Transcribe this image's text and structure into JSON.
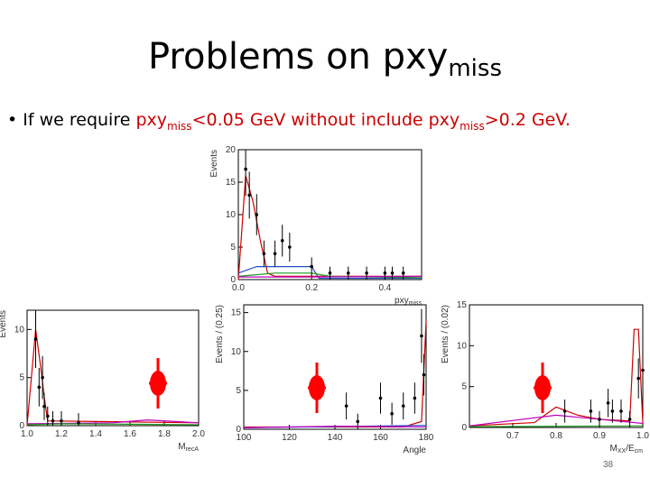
{
  "slide": {
    "title_main": "Problems on pxy",
    "title_sub": "miss",
    "bullet_mark": "•",
    "bullet_text_1": "If we require ",
    "bullet_red_1a": "pxy",
    "bullet_red_1b": "miss",
    "bullet_red_1c": "<0.05 GeV without include pxy",
    "bullet_red_2b": "miss",
    "bullet_red_2c": ">0.2 GeV.",
    "page_number": "38",
    "marker_color": "#ff0000"
  },
  "chart_data": [
    {
      "type": "line",
      "ylabel": "Events",
      "xlabel": "pxy",
      "xlabel_sub": "miss",
      "xlim": [
        0,
        0.5
      ],
      "ylim": [
        0,
        20
      ],
      "xticks": [
        "0.0",
        "0.2",
        "0.4"
      ],
      "yticks": [
        "0",
        "5",
        "10",
        "15",
        "20"
      ],
      "points": [
        [
          0.02,
          17
        ],
        [
          0.03,
          13
        ],
        [
          0.05,
          10
        ],
        [
          0.07,
          4
        ],
        [
          0.1,
          4
        ],
        [
          0.12,
          6
        ],
        [
          0.14,
          5
        ],
        [
          0.2,
          2
        ],
        [
          0.25,
          1
        ],
        [
          0.3,
          1
        ],
        [
          0.35,
          1
        ],
        [
          0.4,
          1
        ],
        [
          0.42,
          1
        ],
        [
          0.45,
          1
        ]
      ],
      "series": [
        {
          "color": "#d00000",
          "values": [
            [
              0,
              0
            ],
            [
              0.02,
              16
            ],
            [
              0.04,
              12
            ],
            [
              0.06,
              6
            ],
            [
              0.08,
              1
            ],
            [
              0.1,
              0.5
            ],
            [
              0.5,
              0.5
            ]
          ]
        },
        {
          "color": "#1f4ec8",
          "values": [
            [
              0,
              1
            ],
            [
              0.05,
              2
            ],
            [
              0.1,
              2
            ],
            [
              0.15,
              2
            ],
            [
              0.2,
              2
            ],
            [
              0.22,
              0.2
            ],
            [
              0.5,
              0.2
            ]
          ]
        },
        {
          "color": "#1a9a1a",
          "values": [
            [
              0,
              0.5
            ],
            [
              0.1,
              1
            ],
            [
              0.2,
              1
            ],
            [
              0.25,
              0.5
            ],
            [
              0.5,
              0.3
            ]
          ]
        },
        {
          "color": "#c000c0",
          "values": [
            [
              0,
              0.4
            ],
            [
              0.2,
              0.4
            ],
            [
              0.5,
              0.5
            ]
          ]
        }
      ]
    },
    {
      "type": "line",
      "ylabel": "Events",
      "xlabel": "M",
      "xlabel_sub": "recA",
      "xlim": [
        1.0,
        2.0
      ],
      "ylim": [
        0,
        12
      ],
      "xticks": [
        "1.0",
        "1.2",
        "1.4",
        "1.6",
        "1.8",
        "2.0"
      ],
      "yticks": [
        "0",
        "5",
        "10"
      ],
      "points": [
        [
          1.05,
          9
        ],
        [
          1.07,
          4
        ],
        [
          1.09,
          5
        ],
        [
          1.1,
          2
        ],
        [
          1.12,
          1
        ],
        [
          1.15,
          0.5
        ],
        [
          1.2,
          0.5
        ],
        [
          1.3,
          0.3
        ]
      ],
      "series": [
        {
          "color": "#d00000",
          "values": [
            [
              1.0,
              0
            ],
            [
              1.05,
              10
            ],
            [
              1.08,
              6
            ],
            [
              1.1,
              3
            ],
            [
              1.12,
              0.5
            ],
            [
              2.0,
              0.3
            ]
          ]
        },
        {
          "color": "#c000c0",
          "values": [
            [
              1.0,
              0.2
            ],
            [
              1.5,
              0.3
            ],
            [
              1.7,
              0.6
            ],
            [
              1.9,
              0.4
            ],
            [
              2.0,
              0.3
            ]
          ]
        },
        {
          "color": "#1a9a1a",
          "values": [
            [
              1.0,
              0.1
            ],
            [
              1.2,
              0.2
            ],
            [
              2.0,
              0.1
            ]
          ]
        }
      ]
    },
    {
      "type": "line",
      "ylabel": "Events / (0.25)",
      "xlabel": "Angle",
      "xlim": [
        100,
        180
      ],
      "ylim": [
        0,
        16
      ],
      "xticks": [
        "100",
        "120",
        "140",
        "160",
        "180"
      ],
      "yticks": [
        "0",
        "5",
        "10",
        "15"
      ],
      "points": [
        [
          145,
          3
        ],
        [
          150,
          1
        ],
        [
          160,
          4
        ],
        [
          165,
          2
        ],
        [
          170,
          3
        ],
        [
          175,
          4
        ],
        [
          178,
          12
        ],
        [
          179,
          7
        ]
      ],
      "series": [
        {
          "color": "#d00000",
          "values": [
            [
              100,
              0.3
            ],
            [
              170,
              0.3
            ],
            [
              178,
              1
            ],
            [
              180,
              14
            ]
          ]
        },
        {
          "color": "#1f4ec8",
          "values": [
            [
              100,
              0.2
            ],
            [
              180,
              0.5
            ]
          ]
        },
        {
          "color": "#c000c0",
          "values": [
            [
              100,
              0.2
            ],
            [
              140,
              0.4
            ],
            [
              180,
              0.3
            ]
          ]
        }
      ]
    },
    {
      "type": "line",
      "ylabel": "Events / (0.02)",
      "xlabel": "M",
      "xlabel_sub": "XX",
      "xlabel_tail": "/E",
      "xlabel_sub2": "cm",
      "xlim": [
        0.6,
        1.0
      ],
      "ylim": [
        0,
        15
      ],
      "xticks": [
        "0.7",
        "0.8",
        "0.9",
        "1.0"
      ],
      "yticks": [
        "0",
        "5",
        "10",
        "15"
      ],
      "points": [
        [
          0.82,
          2
        ],
        [
          0.88,
          2
        ],
        [
          0.9,
          1
        ],
        [
          0.92,
          3
        ],
        [
          0.93,
          2
        ],
        [
          0.95,
          2
        ],
        [
          0.97,
          1
        ],
        [
          0.99,
          6
        ],
        [
          1.0,
          7
        ]
      ],
      "series": [
        {
          "color": "#d00000",
          "values": [
            [
              0.6,
              0.2
            ],
            [
              0.75,
              0.6
            ],
            [
              0.8,
              2.5
            ],
            [
              0.85,
              1.5
            ],
            [
              0.9,
              1
            ],
            [
              0.97,
              0.8
            ],
            [
              0.98,
              12
            ],
            [
              0.99,
              12
            ],
            [
              1.0,
              0.5
            ]
          ]
        },
        {
          "color": "#c000c0",
          "values": [
            [
              0.6,
              0.2
            ],
            [
              0.8,
              1.5
            ],
            [
              0.9,
              1
            ],
            [
              1.0,
              0.5
            ]
          ]
        },
        {
          "color": "#1a9a1a",
          "values": [
            [
              0.6,
              0.1
            ],
            [
              1.0,
              0.2
            ]
          ]
        }
      ]
    }
  ]
}
